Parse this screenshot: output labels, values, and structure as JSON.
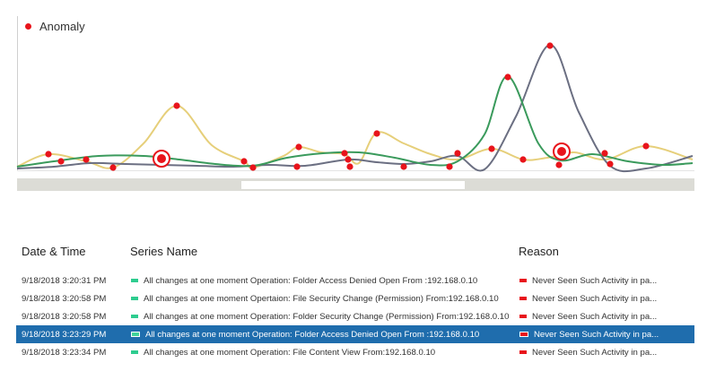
{
  "legend": {
    "label": "Anomaly"
  },
  "colors": {
    "anomaly": "#e8141b",
    "series_gray": "#6b6f82",
    "series_green": "#3a9a5c",
    "series_yellow": "#e6cf7a",
    "selected_row": "#1f6dad",
    "scroll_track": "#dcdcd6",
    "series_swatch": "#2ecc8f"
  },
  "table": {
    "headers": {
      "datetime": "Date & Time",
      "series": "Series Name",
      "reason": "Reason"
    },
    "rows": [
      {
        "datetime": "9/18/2018 3:20:31 PM",
        "series": "All changes at one moment Operation: Folder Access Denied Open From :192.168.0.10",
        "reason": "Never Seen Such Activity in pa...",
        "selected": false
      },
      {
        "datetime": "9/18/2018 3:20:58 PM",
        "series": "All changes at one moment Opertaion: File Security Change (Permission) From:192.168.0.10",
        "reason": "Never Seen Such Activity in pa...",
        "selected": false
      },
      {
        "datetime": "9/18/2018 3:20:58 PM",
        "series": "All changes at one moment Operation: Folder Security Change (Permission) From:192.168.0.10",
        "reason": "Never Seen Such Activity in pa...",
        "selected": false
      },
      {
        "datetime": "9/18/2018 3:23:29 PM",
        "series": "All changes at one moment Operation: Folder Access Denied Open From :192.168.0.10",
        "reason": "Never Seen Such Activity in pa...",
        "selected": true
      },
      {
        "datetime": "9/18/2018 3:23:34 PM",
        "series": "All changes at one moment Operation: File Content View From:192.168.0.10",
        "reason": "Never Seen Such Activity in pa...",
        "selected": false
      }
    ]
  }
}
